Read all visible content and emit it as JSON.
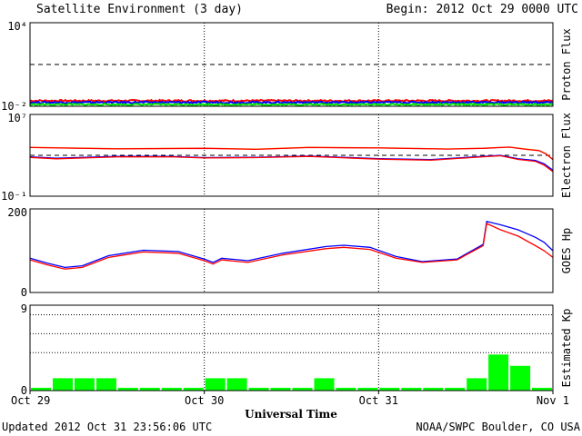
{
  "header": {
    "title": "Satellite Environment (3 day)",
    "begin": "Begin:  2012 Oct 29 0000 UTC"
  },
  "footer": {
    "updated": "Updated 2012 Oct 31 23:56:06 UTC",
    "credit": "NOAA/SWPC Boulder, CO USA"
  },
  "x_axis": {
    "label": "Universal Time",
    "ticks": [
      "Oct 29",
      "Oct 30",
      "Oct 31",
      "Nov 1"
    ]
  },
  "colors": {
    "red": "#ff0000",
    "blue": "#0000ff",
    "green": "#00e000",
    "orange": "#ff9a00",
    "bar": "#00ff00"
  },
  "chart_data": [
    {
      "type": "line",
      "ylabel": "Proton Flux",
      "scale": "log",
      "y_ticks": [
        "10⁴",
        "10⁻²"
      ],
      "ylim": [
        0.01,
        10000
      ],
      "x_days": [
        0,
        3
      ],
      "threshold": 10,
      "series": [
        {
          "color": "red",
          "level": 0.025
        },
        {
          "color": "blue",
          "level": 0.019
        },
        {
          "color": "green",
          "level": 0.0135
        }
      ]
    },
    {
      "type": "line",
      "ylabel": "Electron Flux",
      "scale": "log",
      "y_ticks": [
        "10⁷",
        "10⁻¹"
      ],
      "ylim": [
        0.1,
        10000000
      ],
      "x_days": [
        0,
        3
      ],
      "threshold": 1000,
      "series": [
        {
          "color": "orange",
          "x": [
            0,
            0.5,
            1,
            1.3,
            1.6,
            2.0,
            2.4,
            2.6,
            2.75,
            2.85,
            2.92,
            2.96,
            3.0
          ],
          "y": [
            6000,
            4500,
            5000,
            4000,
            6000,
            5500,
            4200,
            5000,
            6500,
            4000,
            3000,
            1500,
            400
          ]
        },
        {
          "color": "red",
          "x": [
            0,
            0.5,
            1,
            1.3,
            1.6,
            2.0,
            2.4,
            2.6,
            2.75,
            2.85,
            2.92,
            2.96,
            3.0
          ],
          "y": [
            5800,
            4300,
            4800,
            3900,
            5800,
            5300,
            4100,
            4800,
            6300,
            3800,
            2900,
            1400,
            380
          ]
        },
        {
          "color": "blue",
          "x": [
            0,
            0.15,
            0.5,
            0.8,
            1.0,
            1.3,
            1.6,
            2.0,
            2.3,
            2.6,
            2.7,
            2.8,
            2.9,
            2.95,
            3.0
          ],
          "y": [
            700,
            520,
            800,
            780,
            600,
            650,
            850,
            480,
            380,
            800,
            1000,
            460,
            320,
            150,
            35
          ]
        },
        {
          "color": "red",
          "x": [
            0,
            0.15,
            0.5,
            0.8,
            1.0,
            1.3,
            1.6,
            2.0,
            2.3,
            2.6,
            2.7,
            2.8,
            2.9,
            2.95,
            3.0
          ],
          "y": [
            620,
            460,
            700,
            720,
            550,
            600,
            780,
            420,
            340,
            720,
            900,
            400,
            260,
            110,
            25
          ]
        }
      ]
    },
    {
      "type": "line",
      "ylabel": "GOES Hp",
      "scale": "linear",
      "y_ticks": [
        "200",
        "0"
      ],
      "ylim": [
        0,
        200
      ],
      "x_days": [
        0,
        3
      ],
      "series": [
        {
          "color": "blue",
          "x": [
            0,
            0.1,
            0.2,
            0.3,
            0.45,
            0.65,
            0.85,
            1.0,
            1.05,
            1.1,
            1.25,
            1.45,
            1.7,
            1.8,
            1.95,
            2.1,
            2.25,
            2.45,
            2.6,
            2.62,
            2.7,
            2.8,
            2.9,
            2.95,
            3.0
          ],
          "y": [
            82,
            70,
            60,
            64,
            88,
            101,
            98,
            80,
            72,
            82,
            76,
            94,
            110,
            113,
            108,
            86,
            74,
            80,
            115,
            170,
            162,
            150,
            132,
            120,
            100
          ]
        },
        {
          "color": "red",
          "x": [
            0,
            0.1,
            0.2,
            0.3,
            0.45,
            0.65,
            0.85,
            1.0,
            1.05,
            1.1,
            1.25,
            1.45,
            1.7,
            1.8,
            1.95,
            2.1,
            2.25,
            2.45,
            2.6,
            2.62,
            2.7,
            2.8,
            2.9,
            2.95,
            3.0
          ],
          "y": [
            78,
            66,
            56,
            60,
            84,
            97,
            94,
            76,
            68,
            78,
            72,
            90,
            105,
            108,
            103,
            82,
            72,
            78,
            112,
            165,
            150,
            135,
            112,
            100,
            84
          ]
        }
      ]
    },
    {
      "type": "bar",
      "ylabel": "Estimated Kp",
      "y_ticks": [
        "9",
        "0"
      ],
      "ylim": [
        0,
        9
      ],
      "bin_hours": 3,
      "dotted_levels": [
        4,
        6,
        8
      ],
      "values": [
        0.3,
        1.3,
        1.3,
        1.3,
        0.3,
        0.3,
        0.3,
        0.3,
        1.3,
        1.3,
        0.3,
        0.3,
        0.3,
        1.3,
        0.3,
        0.3,
        0.3,
        0.3,
        0.3,
        0.3,
        1.3,
        3.8,
        2.6,
        0.3
      ]
    }
  ]
}
